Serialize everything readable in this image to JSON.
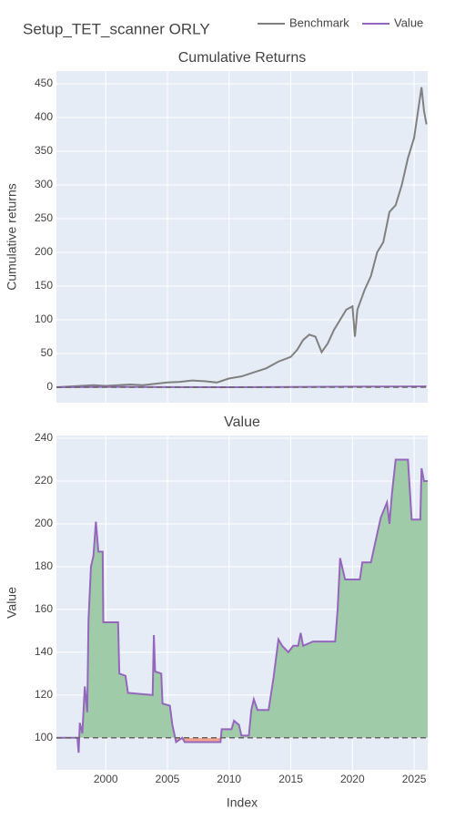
{
  "title": "Setup_TET_scanner ORLY",
  "chart_data": [
    {
      "type": "line",
      "title": "Cumulative Returns",
      "y_label": "Cumulative returns",
      "xlim": [
        1996.0,
        2026.1
      ],
      "xticks": [
        2000,
        2005,
        2010,
        2015,
        2020,
        2025
      ],
      "ylim": [
        -23,
        469
      ],
      "yticks": [
        0,
        50,
        100,
        150,
        200,
        250,
        300,
        350,
        400,
        450
      ],
      "grid": true,
      "baseline": 0,
      "legend": "top right",
      "series": [
        {
          "name": "Benchmark",
          "color": "#808080",
          "x": [
            1996.0,
            1997.0,
            1998.0,
            1999.0,
            2000.0,
            2001.0,
            2002.0,
            2003.0,
            2004.0,
            2005.0,
            2006.0,
            2007.0,
            2008.0,
            2009.0,
            2010.0,
            2011.0,
            2012.0,
            2013.0,
            2014.0,
            2015.0,
            2015.5,
            2016.0,
            2016.5,
            2017.0,
            2017.5,
            2018.0,
            2018.5,
            2019.0,
            2019.5,
            2020.0,
            2020.2,
            2020.4,
            2020.7,
            2021.0,
            2021.5,
            2022.0,
            2022.5,
            2023.0,
            2023.5,
            2024.0,
            2024.5,
            2025.0,
            2025.4,
            2025.6,
            2025.8,
            2026.0
          ],
          "values": [
            0,
            1,
            2,
            3,
            2,
            3,
            4,
            3,
            5,
            7,
            8,
            10,
            9,
            7,
            13,
            16,
            22,
            28,
            38,
            45,
            55,
            70,
            78,
            75,
            52,
            65,
            85,
            100,
            115,
            120,
            75,
            115,
            130,
            145,
            165,
            200,
            215,
            260,
            270,
            300,
            340,
            370,
            420,
            445,
            410,
            390
          ]
        },
        {
          "name": "Value",
          "color": "#9467bd",
          "x": [
            1996.0,
            2000.0,
            2005.0,
            2010.0,
            2015.0,
            2020.0,
            2026.0
          ],
          "values": [
            0,
            0.5,
            0.2,
            0,
            0.4,
            0.8,
            1.2
          ]
        }
      ]
    },
    {
      "type": "area",
      "title": "Value",
      "y_label": "Value",
      "x_label": "Index",
      "xlim": [
        1996.0,
        2026.1
      ],
      "xticks": [
        2000,
        2005,
        2010,
        2015,
        2020,
        2025
      ],
      "ylim": [
        85,
        241.3
      ],
      "yticks": [
        100,
        120,
        140,
        160,
        180,
        200,
        220,
        240
      ],
      "grid": true,
      "baseline": 100,
      "fill_above": "#a0cba8",
      "fill_below": "#f2a48f",
      "series": [
        {
          "name": "Value",
          "color": "#9467bd",
          "x": [
            1996.0,
            1997.7,
            1997.8,
            1997.9,
            1998.1,
            1998.3,
            1998.5,
            1998.6,
            1998.8,
            1999.0,
            1999.2,
            1999.4,
            1999.75,
            1999.8,
            2001.0,
            2001.1,
            2001.6,
            2001.8,
            2003.8,
            2003.9,
            2004.0,
            2004.5,
            2004.6,
            2005.2,
            2005.4,
            2005.7,
            2006.2,
            2006.4,
            2009.3,
            2009.4,
            2010.2,
            2010.4,
            2010.8,
            2011.0,
            2011.6,
            2011.8,
            2012.0,
            2012.3,
            2013.2,
            2013.6,
            2014.0,
            2014.3,
            2014.8,
            2015.2,
            2015.6,
            2015.8,
            2016.0,
            2016.8,
            2018.6,
            2018.8,
            2019.0,
            2019.4,
            2020.6,
            2020.8,
            2021.5,
            2021.8,
            2022.3,
            2022.8,
            2023.0,
            2023.2,
            2023.5,
            2024.5,
            2024.8,
            2025.5,
            2025.6,
            2025.8,
            2026.1
          ],
          "values": [
            100,
            100,
            93,
            107,
            102,
            124,
            112,
            155,
            180,
            185,
            201,
            187,
            187,
            154,
            154,
            130,
            129,
            121,
            120,
            148,
            131,
            130,
            116,
            115,
            106,
            98,
            100,
            98,
            98,
            104,
            104,
            108,
            106,
            101,
            101,
            113,
            118,
            113,
            113,
            128,
            146,
            143,
            140,
            143,
            143,
            149,
            143,
            145,
            145,
            160,
            184,
            174,
            174,
            182,
            182,
            190,
            203,
            210,
            200,
            214,
            230,
            230,
            202,
            202,
            226,
            220,
            220
          ]
        }
      ]
    }
  ]
}
